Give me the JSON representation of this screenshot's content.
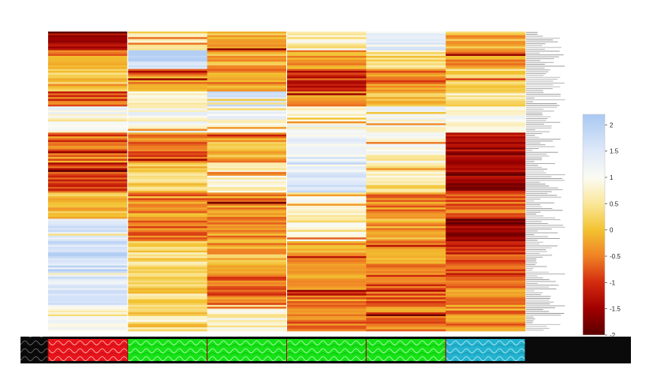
{
  "chart_data": {
    "type": "heatmap",
    "title": "",
    "xlabel": "",
    "ylabel": "",
    "n_columns": 6,
    "n_rows": 160,
    "row_labels_legible": false,
    "column_group_colors": [
      "#e8141b",
      "#16e316",
      "#16e316",
      "#16e316",
      "#16e316",
      "#22b3cf"
    ],
    "colorbar": {
      "min": -2,
      "max": 2.2,
      "ticks": [
        "2",
        "1.5",
        "1",
        "0.5",
        "0",
        "-0.5",
        "-1",
        "-1.5",
        "-2"
      ],
      "tick_values": [
        2,
        1.5,
        1,
        0.5,
        0,
        -0.5,
        -1,
        -1.5,
        -2
      ],
      "colormap": [
        {
          "v": -2.0,
          "color": "#5a0000"
        },
        {
          "v": -1.5,
          "color": "#a00000"
        },
        {
          "v": -1.0,
          "color": "#d32b0f"
        },
        {
          "v": -0.5,
          "color": "#f08225"
        },
        {
          "v": 0.0,
          "color": "#f2c230"
        },
        {
          "v": 0.5,
          "color": "#fbe79a"
        },
        {
          "v": 1.0,
          "color": "#fbfbf3"
        },
        {
          "v": 1.5,
          "color": "#dfe9f9"
        },
        {
          "v": 2.2,
          "color": "#a9c8f2"
        }
      ]
    },
    "bands": [
      {
        "row_start": 0,
        "row_end": 10,
        "col_means": [
          -1.5,
          0.4,
          -0.2,
          0.7,
          1.3,
          -0.1
        ]
      },
      {
        "row_start": 10,
        "row_end": 20,
        "col_means": [
          -0.4,
          1.8,
          -0.1,
          -0.3,
          0.4,
          -0.3
        ]
      },
      {
        "row_start": 20,
        "row_end": 32,
        "col_means": [
          0.1,
          -0.4,
          -0.3,
          -1.0,
          -0.5,
          0.3
        ]
      },
      {
        "row_start": 32,
        "row_end": 40,
        "col_means": [
          -0.8,
          0.6,
          1.4,
          -0.4,
          0.0,
          0.5
        ]
      },
      {
        "row_start": 40,
        "row_end": 54,
        "col_means": [
          1.1,
          1.0,
          1.0,
          1.0,
          1.0,
          1.0
        ]
      },
      {
        "row_start": 54,
        "row_end": 70,
        "col_means": [
          -0.5,
          -0.6,
          -0.2,
          1.4,
          0.8,
          -1.4
        ]
      },
      {
        "row_start": 70,
        "row_end": 86,
        "col_means": [
          -1.0,
          0.2,
          0.7,
          1.5,
          0.5,
          -1.4
        ]
      },
      {
        "row_start": 86,
        "row_end": 100,
        "col_means": [
          0.0,
          -0.3,
          -0.4,
          0.8,
          -0.4,
          -0.6
        ]
      },
      {
        "row_start": 100,
        "row_end": 112,
        "col_means": [
          1.6,
          -0.6,
          -0.3,
          0.7,
          -0.2,
          -1.5
        ]
      },
      {
        "row_start": 112,
        "row_end": 130,
        "col_means": [
          1.7,
          0.4,
          -0.1,
          -0.3,
          -0.4,
          -0.9
        ]
      },
      {
        "row_start": 130,
        "row_end": 146,
        "col_means": [
          1.6,
          0.3,
          -0.6,
          -0.5,
          -0.7,
          -0.5
        ]
      },
      {
        "row_start": 146,
        "row_end": 160,
        "col_means": [
          0.9,
          0.5,
          0.8,
          -0.6,
          -0.5,
          -0.4
        ]
      }
    ]
  }
}
